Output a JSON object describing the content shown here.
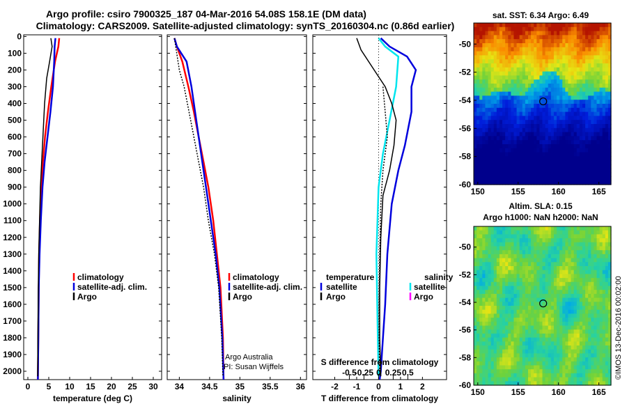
{
  "titles": {
    "line1": "Argo profile: csiro 7900325_187 04-Mar-2016 54.08S 158.1E (DM data)",
    "line2": "Climatology: CARS2009. Satellite-adjusted climatology: synTS_20160304.nc (0.86d earlier)"
  },
  "colors": {
    "climatology": "#ff0000",
    "satellite": "#0000dd",
    "argo": "#000000",
    "salinity_sat": "#00e5ee",
    "salinity_argo": "#ff00ff"
  },
  "depth_ticks": [
    "0",
    "100",
    "200",
    "300",
    "400",
    "500",
    "600",
    "700",
    "800",
    "900",
    "1000",
    "1100",
    "1200",
    "1300",
    "1400",
    "1500",
    "1600",
    "1700",
    "1800",
    "1900",
    "2000"
  ],
  "chart_data": [
    {
      "type": "line",
      "xlabel": "temperature (deg C)",
      "xlim": [
        -1,
        32
      ],
      "ylim": [
        2050,
        -10
      ],
      "xticks": [
        "0",
        "5",
        "10",
        "15",
        "20",
        "25",
        "30"
      ],
      "legend": [
        "climatology",
        "satellite-adj. clim.",
        "Argo"
      ],
      "series": [
        {
          "name": "climatology",
          "x": [
            7.5,
            7.3,
            6.5,
            5.6,
            4.8,
            4.1,
            3.6,
            3.2,
            2.9,
            2.7,
            2.6,
            2.5,
            2.4
          ],
          "y": [
            10,
            60,
            150,
            300,
            450,
            600,
            750,
            900,
            1100,
            1300,
            1500,
            1800,
            2050
          ]
        },
        {
          "name": "satellite-adj. clim.",
          "x": [
            6.6,
            6.4,
            6.3,
            6.0,
            5.4,
            4.7,
            4.0,
            3.5,
            3.1,
            2.8,
            2.6,
            2.5,
            2.4
          ],
          "y": [
            10,
            60,
            150,
            300,
            450,
            600,
            750,
            900,
            1100,
            1300,
            1500,
            1800,
            2050
          ]
        },
        {
          "name": "Argo",
          "x": [
            5.5,
            5.8,
            5.2,
            4.5,
            4.0,
            3.6,
            3.3,
            3.0,
            2.8,
            2.6,
            2.5,
            2.4,
            2.35
          ],
          "y": [
            10,
            60,
            150,
            250,
            400,
            600,
            750,
            900,
            1100,
            1300,
            1500,
            1800,
            2030
          ]
        }
      ]
    },
    {
      "type": "line",
      "xlabel": "salinity",
      "xlim": [
        33.8,
        36.1
      ],
      "ylim": [
        2050,
        -10
      ],
      "xticks": [
        "34",
        "34.5",
        "35",
        "35.5",
        "36"
      ],
      "legend": [
        "climatology",
        "satellite-adj. clim.",
        "Argo"
      ],
      "annotations": [
        "Argo Australia",
        "PI: Susan Wijffels"
      ],
      "series": [
        {
          "name": "climatology",
          "x": [
            33.92,
            33.96,
            34.05,
            34.15,
            34.24,
            34.32,
            34.4,
            34.48,
            34.56,
            34.62,
            34.68,
            34.72,
            34.73
          ],
          "y": [
            10,
            60,
            150,
            300,
            450,
            600,
            750,
            900,
            1100,
            1300,
            1500,
            1800,
            2050
          ]
        },
        {
          "name": "satellite-adj. clim.",
          "x": [
            33.92,
            33.96,
            34.12,
            34.2,
            34.26,
            34.32,
            34.38,
            34.44,
            34.52,
            34.6,
            34.66,
            34.71,
            34.73
          ],
          "y": [
            10,
            60,
            150,
            300,
            450,
            600,
            750,
            900,
            1100,
            1300,
            1500,
            1800,
            2050
          ]
        },
        {
          "name": "Argo",
          "x": [
            33.92,
            33.94,
            34.0,
            34.08,
            34.16,
            34.24,
            34.32,
            34.4,
            34.48,
            34.58,
            34.65,
            34.7,
            34.72
          ],
          "y": [
            10,
            60,
            200,
            300,
            450,
            600,
            750,
            900,
            1100,
            1300,
            1500,
            1800,
            2030
          ]
        }
      ]
    },
    {
      "type": "line",
      "xlabel": "T difference from climatology",
      "xlim": [
        -3,
        3.1
      ],
      "ylim": [
        2050,
        -10
      ],
      "xticks": [
        "-2",
        "-1",
        "0",
        "1",
        "2"
      ],
      "s_xlabel": "S difference from climatology",
      "s_xticks": [
        "-0.5",
        "-0.25",
        "0",
        "0.25",
        "0.5"
      ],
      "legend_temperature_title": "temperature",
      "legend_salinity_title": "salinity",
      "legend": [
        "satellite",
        "Argo"
      ],
      "series": [
        {
          "name": "satellite",
          "x": [
            0.1,
            0.5,
            1.3,
            1.7,
            1.5,
            1.5,
            1.2,
            0.9,
            0.6,
            0.4,
            0.3,
            0.2,
            0.1,
            0.05
          ],
          "y": [
            10,
            60,
            120,
            200,
            300,
            450,
            650,
            800,
            1000,
            1300,
            1600,
            1800,
            2000,
            2050
          ]
        },
        {
          "name": "Argo",
          "x": [
            -1.0,
            -0.8,
            -0.2,
            0.3,
            0.6,
            0.8,
            0.7,
            0.5,
            0.2,
            0.1,
            0.05,
            0.05,
            0.1
          ],
          "y": [
            10,
            80,
            200,
            300,
            400,
            500,
            650,
            800,
            950,
            1200,
            1500,
            1800,
            2030
          ]
        },
        {
          "name": "salinity satellite",
          "x": [
            0.0,
            0.3,
            0.9,
            0.8,
            0.5,
            0.2,
            0.0,
            -0.1,
            -0.05,
            0.0
          ],
          "y": [
            10,
            60,
            120,
            300,
            500,
            700,
            900,
            1300,
            1700,
            2030
          ]
        },
        {
          "name": "salinity Argo",
          "x": [
            0.2,
            0.3,
            0.4,
            0.2,
            0.1,
            0.05,
            0.02,
            0.02,
            0.05
          ],
          "y": [
            300,
            450,
            600,
            800,
            1000,
            1300,
            1600,
            1800,
            2030
          ]
        }
      ]
    },
    {
      "type": "heatmap",
      "title": "sat. SST: 6.34 Argo: 6.49",
      "xlim": [
        149.5,
        166.5
      ],
      "ylim": [
        -60,
        -48.5
      ],
      "xticks": [
        "150",
        "155",
        "160",
        "165"
      ],
      "yticks": [
        "-50",
        "-52",
        "-54",
        "-56",
        "-58",
        "-60"
      ],
      "marker": {
        "lon": 158.1,
        "lat": -54.08
      }
    },
    {
      "type": "heatmap",
      "title": "Altim. SLA: 0.15",
      "subtitle": "Argo h1000: NaN h2000: NaN",
      "xlim": [
        149.5,
        166.5
      ],
      "ylim": [
        -60,
        -48.5
      ],
      "xticks": [
        "150",
        "155",
        "160",
        "165"
      ],
      "yticks": [
        "-50",
        "-52",
        "-54",
        "-56",
        "-58",
        "-60"
      ],
      "marker": {
        "lon": 158.1,
        "lat": -54.08
      }
    }
  ],
  "credit": "©IMOS 13-Dec-2016 00:02:00"
}
